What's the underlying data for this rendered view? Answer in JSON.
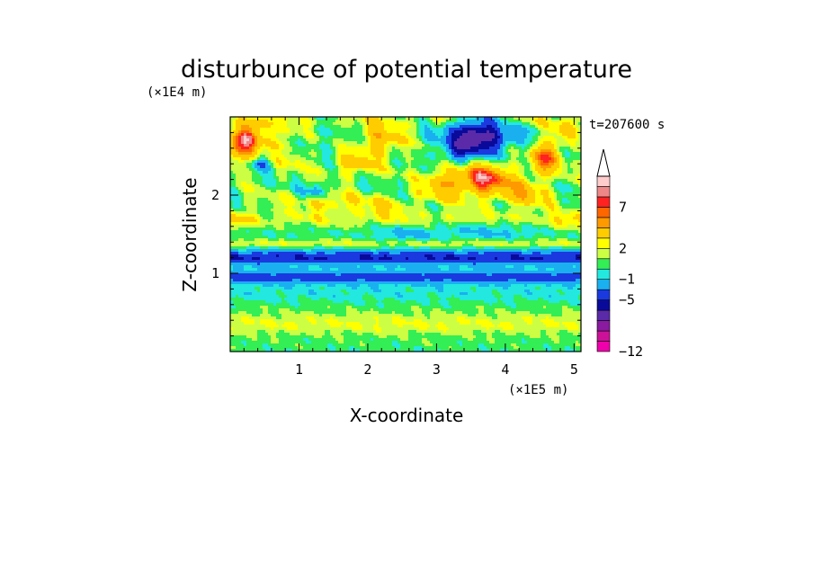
{
  "chart_data": {
    "type": "heatmap",
    "title": "disturbunce of potential temperature",
    "xlabel": "X-coordinate",
    "ylabel": "Z-coordinate",
    "x_scale_label": "(×1E5 m)",
    "y_scale_label": "(×1E4 m)",
    "time_label": "t=207600 s",
    "x_range": [
      0,
      5.1
    ],
    "y_range": [
      0,
      3.0
    ],
    "x_ticks": [
      "1",
      "2",
      "3",
      "4",
      "5"
    ],
    "x_tick_values": [
      1,
      2,
      3,
      4,
      5
    ],
    "y_ticks": [
      "1",
      "2"
    ],
    "y_tick_values": [
      1,
      2
    ],
    "colorbar": {
      "extend": "max",
      "labels": [
        {
          "text": "7",
          "value": 7
        },
        {
          "text": "2",
          "value": 2
        },
        {
          "text": "−1",
          "value": -1
        },
        {
          "text": "−5",
          "value": -5
        },
        {
          "text": "−12",
          "value": -12
        }
      ],
      "colors": [
        "#ee00aa",
        "#cc1199",
        "#8a1aa0",
        "#5a2aa8",
        "#0a0a9a",
        "#1a3ae0",
        "#1ab0f0",
        "#22e8e0",
        "#33ee55",
        "#ccff44",
        "#ffff00",
        "#ffcc00",
        "#ff9900",
        "#ff6600",
        "#ff2222",
        "#ee8888",
        "#ffcccc"
      ],
      "levels": [
        -12,
        -11,
        -10,
        -9,
        -7,
        -5,
        -3,
        -1,
        0,
        1,
        2,
        3,
        5,
        6,
        7,
        8,
        9
      ]
    },
    "fields": [
      {
        "x": 0.3,
        "z": 2.75,
        "v": 6.5,
        "sx": 0.22,
        "sz": 0.22
      },
      {
        "x": 0.1,
        "z": 2.6,
        "v": 4,
        "sx": 0.18,
        "sz": 0.2
      },
      {
        "x": 0.75,
        "z": 2.7,
        "v": 2.5,
        "sx": 0.25,
        "sz": 0.18
      },
      {
        "x": 2.2,
        "z": 2.7,
        "v": 4.5,
        "sx": 0.35,
        "sz": 0.2
      },
      {
        "x": 1.8,
        "z": 2.4,
        "v": 3,
        "sx": 0.3,
        "sz": 0.15
      },
      {
        "x": 3.6,
        "z": 2.75,
        "v": -9,
        "sx": 0.4,
        "sz": 0.22
      },
      {
        "x": 3.3,
        "z": 2.55,
        "v": -3,
        "sx": 0.2,
        "sz": 0.15
      },
      {
        "x": 4.6,
        "z": 2.5,
        "v": 6,
        "sx": 0.22,
        "sz": 0.2
      },
      {
        "x": 4.85,
        "z": 2.8,
        "v": 3,
        "sx": 0.2,
        "sz": 0.15
      },
      {
        "x": 3.7,
        "z": 2.2,
        "v": 7,
        "sx": 0.35,
        "sz": 0.2
      },
      {
        "x": 3.1,
        "z": 2.15,
        "v": 4,
        "sx": 0.3,
        "sz": 0.18
      },
      {
        "x": 4.3,
        "z": 2.05,
        "v": 3.5,
        "sx": 0.3,
        "sz": 0.2
      },
      {
        "x": 1.0,
        "z": 2.45,
        "v": 1.5,
        "sx": 0.2,
        "sz": 0.12
      },
      {
        "x": 1.25,
        "z": 2.05,
        "v": -3,
        "sx": 0.15,
        "sz": 0.1
      },
      {
        "x": 0.45,
        "z": 2.4,
        "v": -3.5,
        "sx": 0.12,
        "sz": 0.08
      },
      {
        "x": 1.4,
        "z": 1.9,
        "v": 2.5,
        "sx": 0.35,
        "sz": 0.12
      },
      {
        "x": 2.2,
        "z": 1.85,
        "v": 2,
        "sx": 0.4,
        "sz": 0.12
      },
      {
        "x": 0.1,
        "z": 1.7,
        "v": 1.5,
        "sx": 0.25,
        "sz": 0.12
      },
      {
        "x": 4.9,
        "z": 1.65,
        "v": 1.5,
        "sx": 0.25,
        "sz": 0.12
      },
      {
        "x": 2.6,
        "z": 1.5,
        "v": -1.5,
        "sx": 0.5,
        "sz": 0.12
      },
      {
        "x": 3.8,
        "z": 1.55,
        "v": -1.5,
        "sx": 0.6,
        "sz": 0.12
      }
    ],
    "bands": [
      {
        "z": 2.95,
        "v": 1.5,
        "sz": 0.1
      },
      {
        "z": 2.3,
        "v": 0.8,
        "sz": 0.25
      },
      {
        "z": 1.95,
        "v": 1.0,
        "sz": 0.12
      },
      {
        "z": 1.7,
        "v": 1.8,
        "sz": 0.12
      },
      {
        "z": 1.38,
        "v": 1.8,
        "sz": 0.06
      },
      {
        "z": 1.2,
        "v": -5.0,
        "sz": 0.09
      },
      {
        "z": 0.95,
        "v": -4.2,
        "sz": 0.08
      },
      {
        "z": 0.75,
        "v": -0.5,
        "sz": 0.1
      },
      {
        "z": 0.55,
        "v": 0.3,
        "sz": 0.12
      },
      {
        "z": 0.35,
        "v": 2.0,
        "sz": 0.15
      },
      {
        "z": 0.08,
        "v": 0.4,
        "sz": 0.1
      }
    ]
  }
}
